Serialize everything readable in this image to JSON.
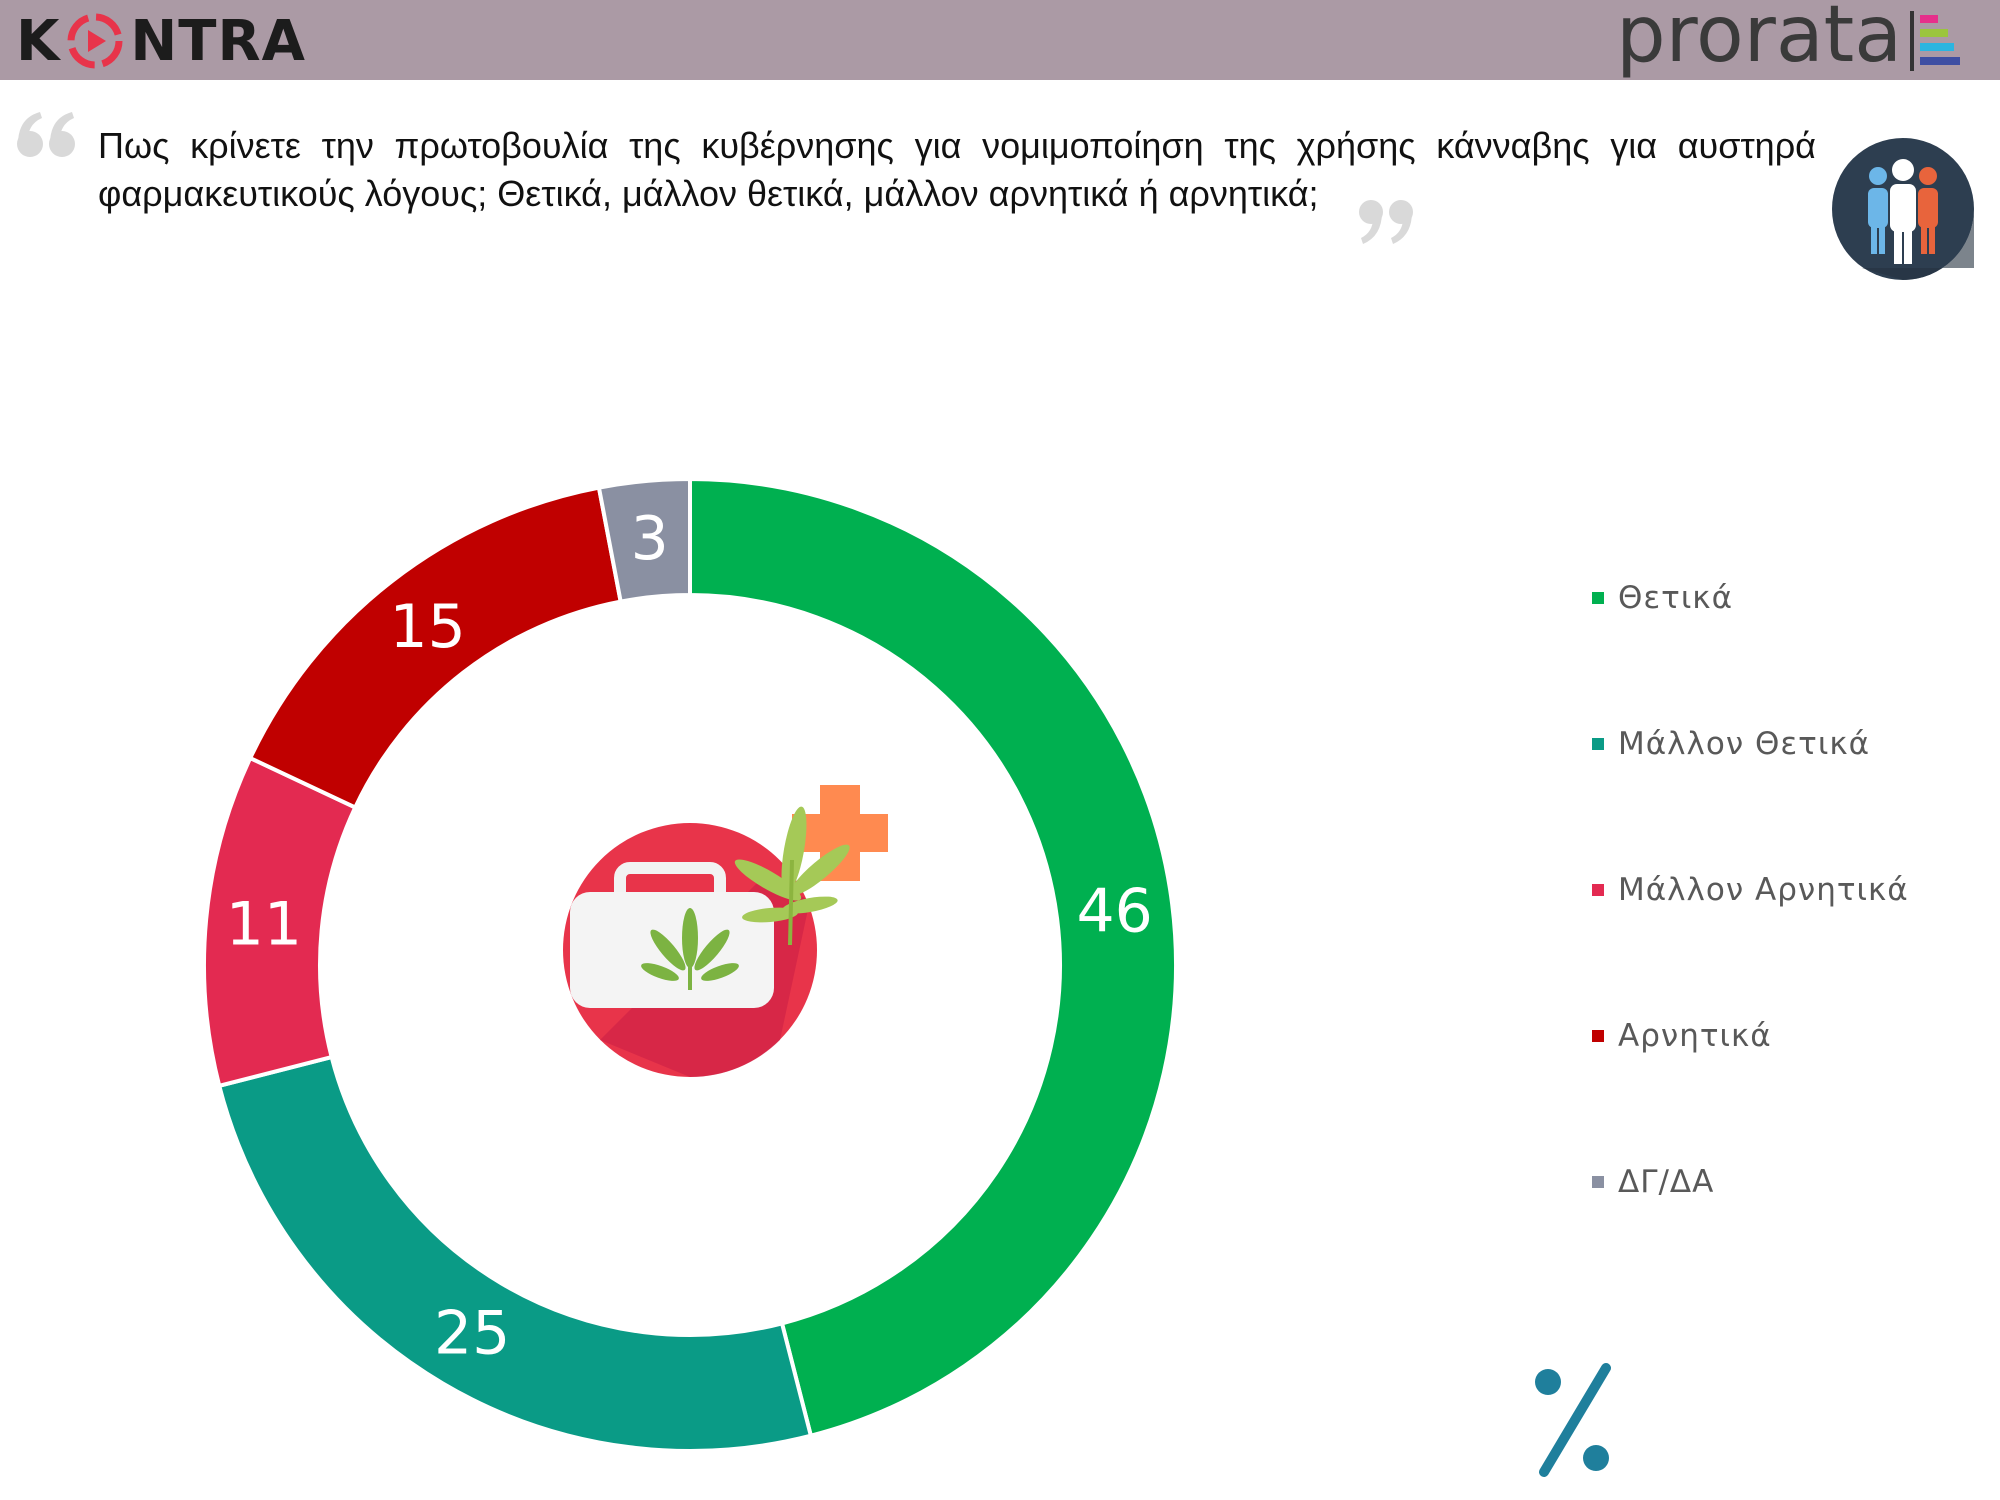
{
  "header": {
    "left_logo": "KONTRA",
    "right_logo": "prorata",
    "background": "#ab9aa5"
  },
  "question": "Πως κρίνετε την πρωτοβουλία της κυβέρνησης για νομιμοποίηση της χρήσης κάνναβης για αυστηρά φαρμακευτικούς λόγους; Θετικά, μάλλον θετικά, μάλλον αρνητικά ή αρνητικά;",
  "icons": {
    "quote_open": "open-quote-icon",
    "quote_close": "close-quote-icon",
    "people": "people-icon",
    "center": "medical-kit-cannabis-icon",
    "percent": "percent-icon"
  },
  "chart_data": {
    "type": "pie",
    "subtype": "donut",
    "unit": "%",
    "legend_position": "right",
    "categories": [
      "Θετικά",
      "Μάλλον Θετικά",
      "Μάλλον Αρνητικά",
      "Αρνητικά",
      "ΔΓ/ΔΑ"
    ],
    "values": [
      46,
      25,
      11,
      15,
      3
    ],
    "labels": [
      "46",
      "25",
      "11",
      "15",
      "3"
    ],
    "colors": [
      "#00b050",
      "#0a9b86",
      "#e32a51",
      "#c00000",
      "#8a90a2"
    ],
    "label_colors": [
      "#ffffff",
      "#ffffff",
      "#ffffff",
      "#ffffff",
      "#1a1a1a"
    ]
  }
}
